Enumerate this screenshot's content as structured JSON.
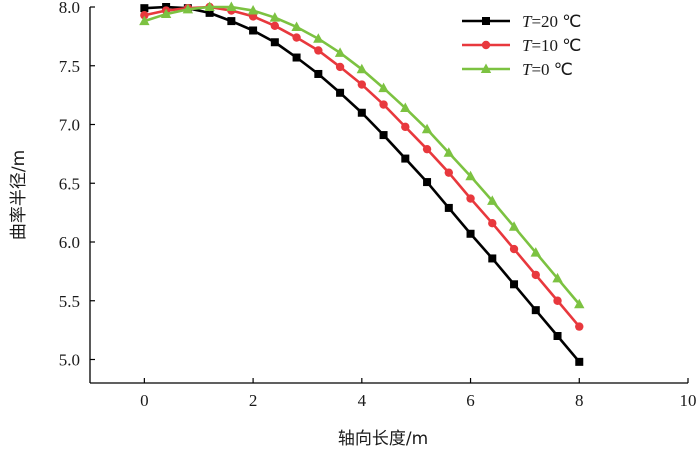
{
  "chart_data": {
    "type": "line",
    "title": "",
    "xlabel": "轴向长度/m",
    "ylabel": "曲率半径/m",
    "xlim": [
      -1,
      10
    ],
    "ylim": [
      4.8,
      8.0
    ],
    "xticks": [
      0,
      2,
      4,
      6,
      8,
      10
    ],
    "yticks": [
      5.0,
      5.5,
      6.0,
      6.5,
      7.0,
      7.5,
      8.0
    ],
    "xtick_labels": [
      "0",
      "2",
      "4",
      "6",
      "8",
      "10"
    ],
    "ytick_labels": [
      "5.0",
      "5.5",
      "6.0",
      "6.5",
      "7.0",
      "7.5",
      "8.0"
    ],
    "grid": false,
    "legend_position": "top-right",
    "x": [
      0,
      0.4,
      0.8,
      1.2,
      1.6,
      2.0,
      2.4,
      2.8,
      3.2,
      3.6,
      4.0,
      4.4,
      4.8,
      5.2,
      5.6,
      6.0,
      6.4,
      6.8,
      7.2,
      7.6,
      8.0
    ],
    "series": [
      {
        "name": "T=20 ℃",
        "label_var": "T",
        "label_rest": "=20 ℃",
        "color": "#000000",
        "marker": "square",
        "values": [
          7.99,
          8.0,
          7.99,
          7.95,
          7.88,
          7.8,
          7.7,
          7.57,
          7.43,
          7.27,
          7.1,
          6.91,
          6.71,
          6.51,
          6.29,
          6.07,
          5.86,
          5.64,
          5.42,
          5.2,
          4.98
        ]
      },
      {
        "name": "T=10 ℃",
        "label_var": "T",
        "label_rest": "=10 ℃",
        "color": "#e8383d",
        "marker": "circle",
        "values": [
          7.93,
          7.97,
          7.99,
          8.0,
          7.97,
          7.92,
          7.84,
          7.74,
          7.63,
          7.49,
          7.34,
          7.17,
          6.98,
          6.79,
          6.59,
          6.37,
          6.16,
          5.94,
          5.72,
          5.5,
          5.28
        ]
      },
      {
        "name": "T=0 ℃",
        "label_var": "T",
        "label_rest": "=0 ℃",
        "color": "#7cc241",
        "marker": "triangle",
        "values": [
          7.88,
          7.94,
          7.98,
          8.0,
          8.0,
          7.97,
          7.91,
          7.83,
          7.73,
          7.61,
          7.47,
          7.31,
          7.14,
          6.96,
          6.76,
          6.56,
          6.35,
          6.13,
          5.91,
          5.69,
          5.47
        ]
      }
    ]
  }
}
